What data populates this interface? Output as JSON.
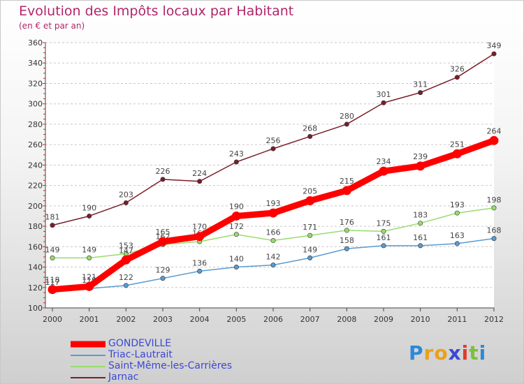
{
  "title": "Evolution des Impôts locaux par Habitant",
  "subtitle": "(en € et par an)",
  "logo": {
    "letters": [
      "P",
      "r",
      "o",
      "x",
      "i",
      "t",
      "i"
    ],
    "colors": [
      "#2b8ad8",
      "#e8a21a",
      "#e8a21a",
      "#3b48d4",
      "#e03a2b",
      "#7cbf3a",
      "#2b8ad8"
    ]
  },
  "chart_data": {
    "type": "line",
    "title": "Evolution des Impôts locaux par Habitant",
    "subtitle": "(en € et par an)",
    "xlabel": "",
    "ylabel": "",
    "x": [
      "2000",
      "2001",
      "2002",
      "2003",
      "2004",
      "2005",
      "2006",
      "2007",
      "2008",
      "2009",
      "2010",
      "2011",
      "2012"
    ],
    "ylim": [
      100,
      360
    ],
    "yticks": [
      100,
      120,
      140,
      160,
      180,
      200,
      220,
      240,
      260,
      280,
      300,
      320,
      340,
      360
    ],
    "grid": "horizontal dashed",
    "legend_position": "bottom-left",
    "series": [
      {
        "name": "GONDEVILLE",
        "color": "#ff0000",
        "emphasis": "thick",
        "values": [
          118,
          121,
          147,
          165,
          170,
          190,
          193,
          205,
          215,
          234,
          239,
          251,
          264
        ],
        "labels": [
          "118",
          "121",
          "147",
          "165",
          "170",
          "190",
          "193",
          "205",
          "215",
          "234",
          "239",
          "251",
          "264"
        ]
      },
      {
        "name": "Triac-Lautrait",
        "color": "#5b9bd0",
        "emphasis": "normal",
        "values": [
          117,
          119,
          122,
          129,
          136,
          140,
          142,
          149,
          158,
          161,
          161,
          163,
          168
        ],
        "labels": [
          "117",
          "119",
          "122",
          "129",
          "136",
          "140",
          "142",
          "149",
          "158",
          "161",
          "161",
          "163",
          "168"
        ]
      },
      {
        "name": "Saint-Même-les-Carrières",
        "color": "#98dc6e",
        "emphasis": "normal",
        "values": [
          149,
          149,
          153,
          162,
          165,
          172,
          166,
          171,
          176,
          175,
          183,
          193,
          198
        ],
        "labels": [
          "149",
          "149",
          "153",
          "162",
          "165",
          "172",
          "166",
          "171",
          "176",
          "175",
          "183",
          "193",
          "198"
        ]
      },
      {
        "name": "Jarnac",
        "color": "#7a1e28",
        "emphasis": "normal",
        "values": [
          181,
          190,
          203,
          226,
          224,
          243,
          256,
          268,
          280,
          301,
          311,
          326,
          349
        ],
        "labels": [
          "181",
          "190",
          "203",
          "226",
          "224",
          "243",
          "256",
          "268",
          "280",
          "301",
          "311",
          "326",
          "349"
        ]
      }
    ]
  }
}
